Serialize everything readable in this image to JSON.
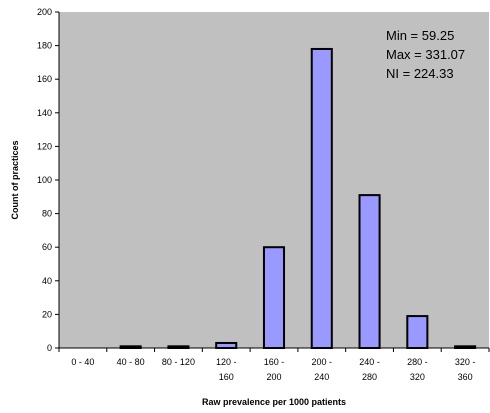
{
  "chart_data": {
    "type": "bar",
    "xlabel": "Raw prevalence per 1000 patients",
    "ylabel": "Count of practices",
    "ylim": [
      0,
      200
    ],
    "yticks": [
      0,
      20,
      40,
      60,
      80,
      100,
      120,
      140,
      160,
      180,
      200
    ],
    "categories": [
      [
        "0 - 40"
      ],
      [
        "40 - 80"
      ],
      [
        "80 - 120"
      ],
      [
        "120 -",
        "160"
      ],
      [
        "160 -",
        "200"
      ],
      [
        "200 -",
        "240"
      ],
      [
        "240 -",
        "280"
      ],
      [
        "280 -",
        "320"
      ],
      [
        "320 -",
        "360"
      ]
    ],
    "values": [
      0,
      1,
      1,
      3,
      60,
      178,
      91,
      19,
      1
    ],
    "grid": false,
    "legend": "none",
    "annotations": [
      "Min = 59.25",
      "Max = 331.07",
      "NI = 224.33"
    ],
    "colors": {
      "plot_background": "#c0c0c0",
      "bar_fill": "#9999ff",
      "bar_stroke": "#000000",
      "axis": "#000000"
    }
  }
}
